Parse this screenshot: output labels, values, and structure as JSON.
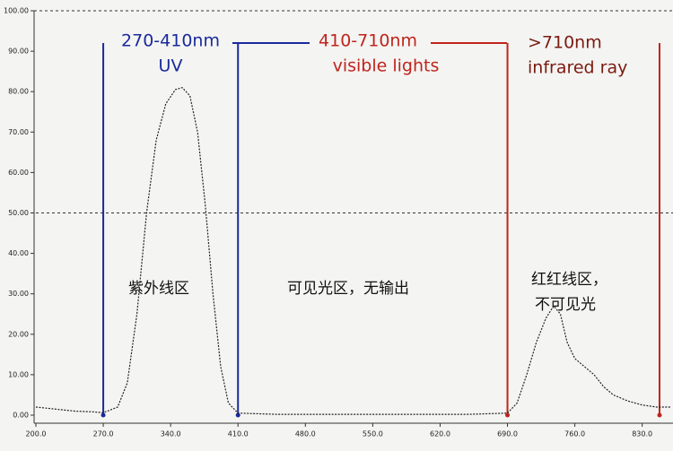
{
  "chart_data": {
    "type": "line",
    "x": [
      200,
      220,
      240,
      260,
      270,
      285,
      295,
      305,
      315,
      325,
      335,
      345,
      352,
      360,
      368,
      376,
      384,
      392,
      400,
      410,
      450,
      550,
      650,
      690,
      700,
      710,
      720,
      730,
      738,
      745,
      752,
      760,
      770,
      780,
      790,
      800,
      815,
      830,
      845,
      860
    ],
    "values": [
      2,
      1.5,
      1,
      0.8,
      0.6,
      2,
      8,
      25,
      50,
      68,
      77,
      80.5,
      81,
      79,
      70,
      52,
      30,
      12,
      3,
      0.5,
      0.2,
      0.2,
      0.2,
      0.5,
      3,
      10,
      18,
      24,
      27,
      25,
      18,
      14,
      12,
      10,
      7,
      5,
      3.5,
      2.5,
      2,
      2
    ],
    "color": "#222222",
    "xlim": [
      200,
      862
    ],
    "ylim": [
      0,
      100
    ],
    "xticks": [
      {
        "value": 200,
        "label": "200.0"
      },
      {
        "value": 270,
        "label": "270.0"
      },
      {
        "value": 340,
        "label": "340.0"
      },
      {
        "value": 410,
        "label": "410.0"
      },
      {
        "value": 480,
        "label": "480.0"
      },
      {
        "value": 550,
        "label": "550.0"
      },
      {
        "value": 620,
        "label": "620.0"
      },
      {
        "value": 690,
        "label": "690.0"
      },
      {
        "value": 760,
        "label": "760.0"
      },
      {
        "value": 830,
        "label": "830.0"
      }
    ],
    "yticks": [
      {
        "value": 0,
        "label": "0.00"
      },
      {
        "value": 10,
        "label": "10.00"
      },
      {
        "value": 20,
        "label": "20.00"
      },
      {
        "value": 30,
        "label": "30.00"
      },
      {
        "value": 40,
        "label": "40.00"
      },
      {
        "value": 50,
        "label": "50.00"
      },
      {
        "value": 60,
        "label": "60.00"
      },
      {
        "value": 70,
        "label": "70.00"
      },
      {
        "value": 80,
        "label": "80.00"
      },
      {
        "value": 90,
        "label": "90.00"
      },
      {
        "value": 100,
        "label": "100.00"
      }
    ],
    "reference_line": 50,
    "markers": [
      {
        "x": 270,
        "color": "#1a2a9c"
      },
      {
        "x": 410,
        "color": "#1a2a9c"
      },
      {
        "x": 690,
        "color": "#c0241c"
      },
      {
        "x": 848,
        "color": "#c0241c"
      }
    ],
    "annotations": {
      "uv_range": "270-410nm",
      "uv": "UV",
      "visible_range": "410-710nm",
      "visible": "visible lights",
      "ir_range": ">710nm",
      "ir": "infrared ray",
      "uv_zh": "紫外线区",
      "visible_zh": "可见光区，无输出",
      "ir_zh_1": "红红线区，",
      "ir_zh_2": "不可见光"
    }
  }
}
